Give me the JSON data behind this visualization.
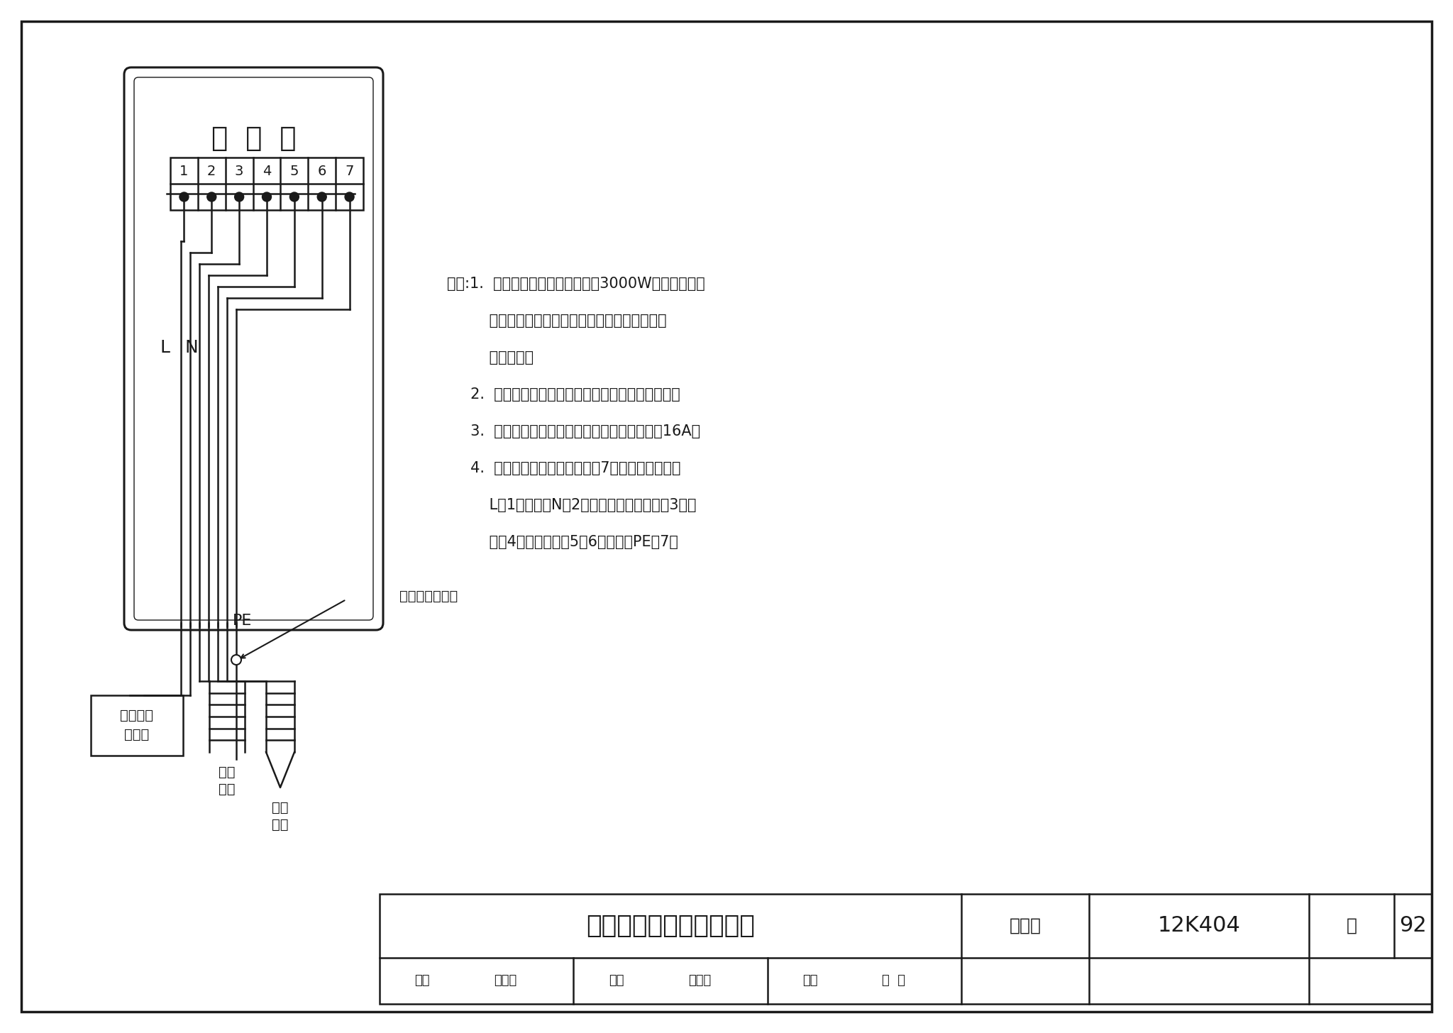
{
  "line_color": "#1a1a1a",
  "controller_title": "温  控  器",
  "terminals": [
    "1",
    "2",
    "3",
    "4",
    "5",
    "6",
    "7"
  ],
  "label_grounding_wire": "加热电缆接地线",
  "notes_line1": "说明:1.  当加热电缆功率小于或等于3000W，并为一根电",
  "notes_line2": "         缆时，加热电缆可直接接入温控器。安装情况",
  "notes_line3": "         如图所示。",
  "notes_line4": "     2.  温控器型号不同，接线端子不同，其原理一样。",
  "notes_line5": "     3.  温控器内的微型交流接触器遮断电流不小于16A。",
  "notes_line6": "     4.  加热电缆直接进温控器共计7个端子：电源相线",
  "notes_line7": "         L端1、中性线N端2；加热电缆的中性线端3、相",
  "notes_line8": "         线端4；地温探头端5、6；保护线PE端7。",
  "footer_title": "加热电缆温控器接线图一",
  "footer_fig_label": "图集号",
  "footer_fig_num": "12K404",
  "footer_page_label": "页",
  "footer_page_num": "92",
  "footer_row2": "审核 陈立埔  校对 刘国选  设计 刘  辉",
  "label_L": "L",
  "label_N": "N",
  "label_PE": "PE",
  "label_hc1": "加热",
  "label_hc2": "电缆",
  "label_gp1": "地温",
  "label_gp2": "探头",
  "label_pb1": "来自电源",
  "label_pb2": "配电箱"
}
